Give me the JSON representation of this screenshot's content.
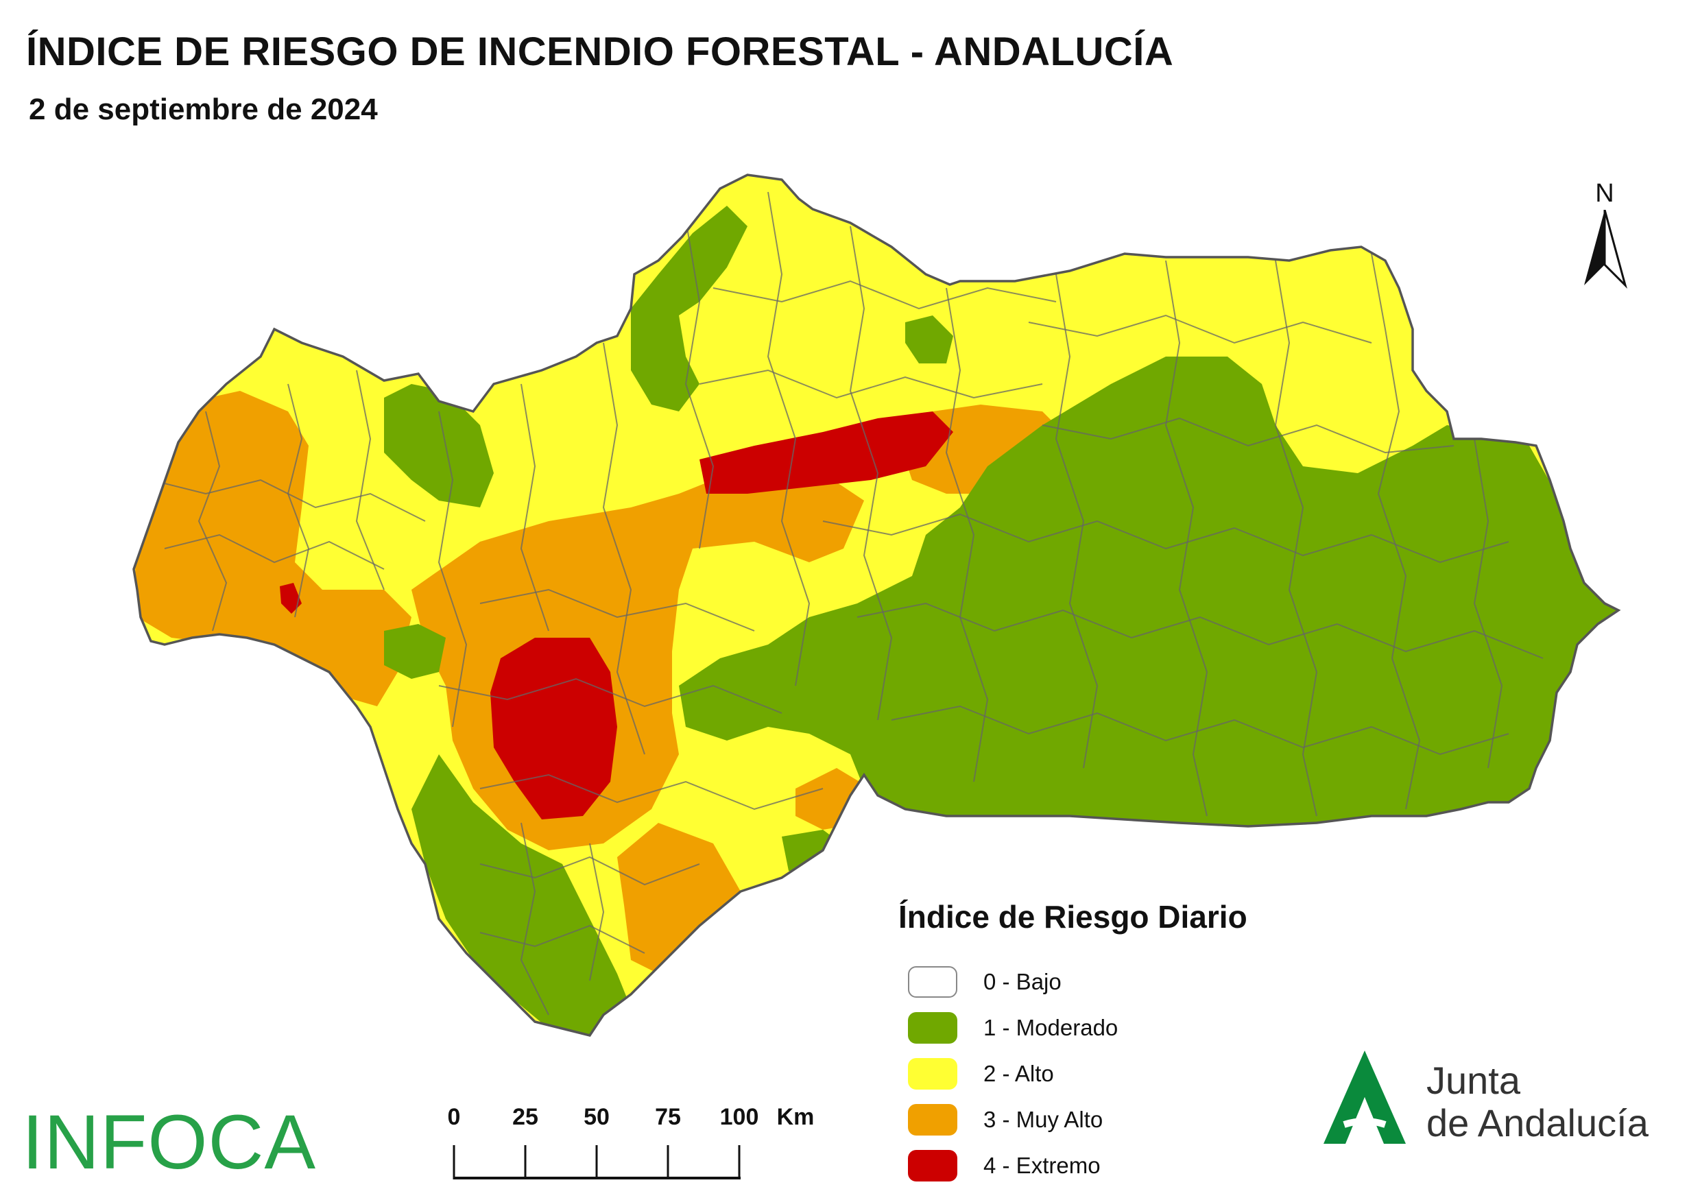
{
  "header": {
    "title": "ÍNDICE DE RIESGO DE INCENDIO FORESTAL - ANDALUCÍA",
    "date": "2 de septiembre de 2024"
  },
  "north_arrow": {
    "label": "N"
  },
  "legend": {
    "title": "Índice de Riesgo Diario",
    "items": [
      {
        "label": "0 - Bajo",
        "color": "#ffffff"
      },
      {
        "label": "1 - Moderado",
        "color": "#70a800"
      },
      {
        "label": "2 - Alto",
        "color": "#ffff33"
      },
      {
        "label": "3 - Muy Alto",
        "color": "#f0a000"
      },
      {
        "label": "4 - Extremo",
        "color": "#cc0000"
      }
    ]
  },
  "scale_bar": {
    "ticks": [
      "0",
      "25",
      "50",
      "75",
      "100"
    ],
    "unit": "Km"
  },
  "logos": {
    "infoca": "INFOCA",
    "junta_line1": "Junta",
    "junta_line2": "de Andalucía"
  },
  "colors": {
    "moderado": "#70a800",
    "alto": "#ffff33",
    "muy_alto": "#f0a000",
    "extremo": "#cc0000",
    "boundaries": "#666666",
    "infoca_green": "#27a148",
    "junta_green": "#0a8a3c"
  }
}
